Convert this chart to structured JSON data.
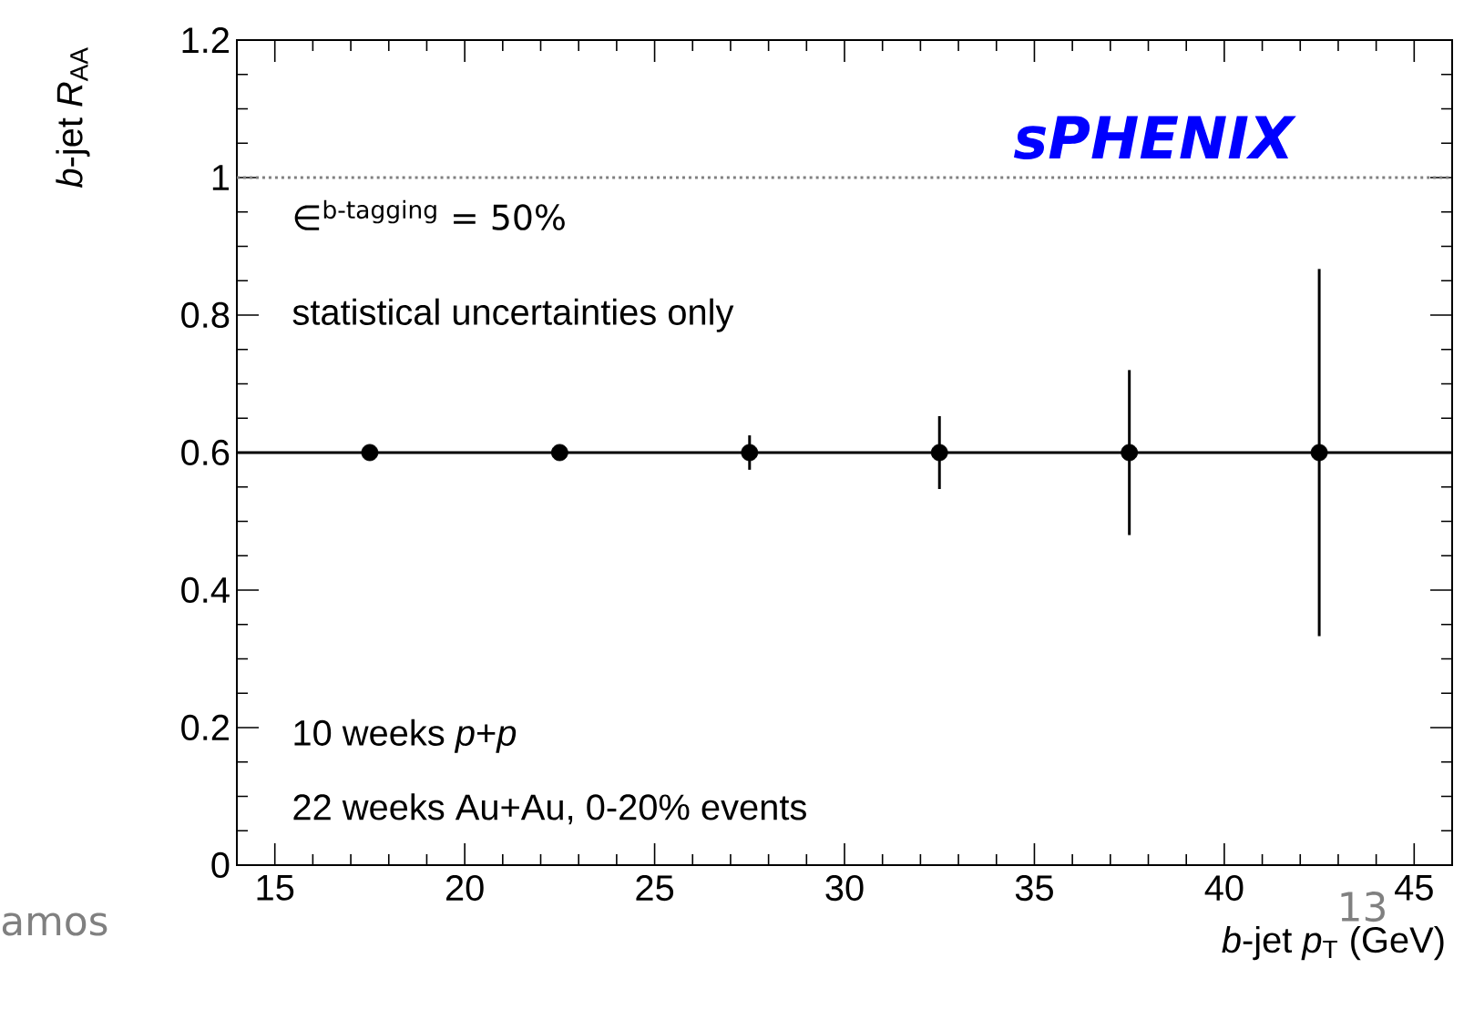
{
  "chart_data": {
    "type": "scatter",
    "xlabel": "*b*-jet *p*$_{T}$ (GeV)",
    "ylabel": "*b*-jet *R*$_{AA}$",
    "x": [
      17.5,
      22.5,
      27.5,
      32.5,
      37.5,
      42.5
    ],
    "series": [
      {
        "color": "#000000",
        "values": [
          0.6,
          0.6,
          0.6,
          0.6,
          0.6,
          0.6
        ],
        "errors": [
          null,
          null,
          0.025,
          0.053,
          0.12,
          0.267
        ]
      }
    ],
    "marker": "circle",
    "xlim": [
      14,
      46
    ],
    "ylim": [
      0,
      1.2
    ],
    "xticks": [
      15,
      20,
      25,
      30,
      35,
      40,
      45
    ],
    "yticks": [
      0,
      0.2,
      0.4,
      0.6,
      0.8,
      1,
      1.2
    ],
    "ref_lines": [
      {
        "axis": "y",
        "value": 1,
        "color": "#808080",
        "line_style": "dotted"
      },
      {
        "axis": "y",
        "value": 0.6,
        "color": "#000000",
        "line_style": "solid"
      }
    ],
    "annotations": [
      "sPHENIX",
      "∈$^{b-tagging}$ = 50%",
      "statistical uncertainties only",
      "10 weeks *p*+*p*",
      "22 weeks Au+Au, 0-20% events",
      "amos",
      "13"
    ]
  }
}
